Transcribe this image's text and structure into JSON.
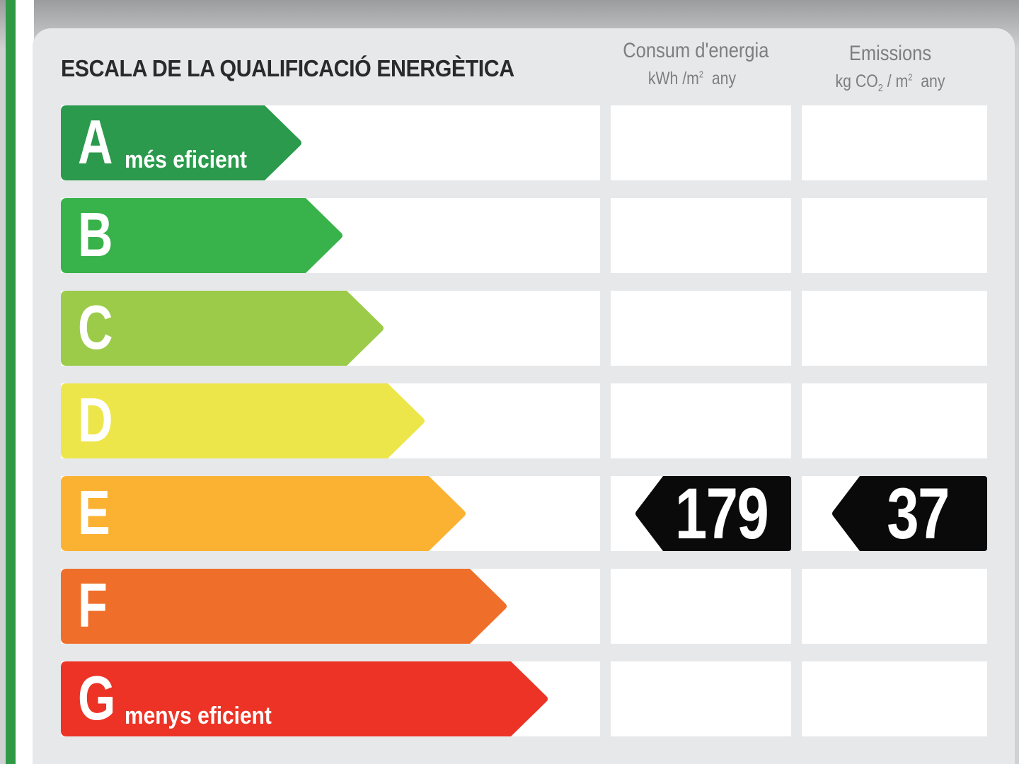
{
  "title": "ESCALA DE LA QUALIFICACIÓ ENERGÈTICA",
  "columns": {
    "consumption": {
      "title": "Consum d'energia",
      "unit_main": "kWh /m",
      "unit_sup": "2",
      "unit_tail": "any"
    },
    "emissions": {
      "title": "Emissions",
      "unit_pre": "kg CO",
      "unit_sub": "2",
      "unit_mid": " / m",
      "unit_sup": "2",
      "unit_tail": "any"
    }
  },
  "classes": [
    {
      "letter": "A",
      "label": "més eficient",
      "color": "#2b9a4c"
    },
    {
      "letter": "B",
      "label": "",
      "color": "#38b24a"
    },
    {
      "letter": "C",
      "label": "",
      "color": "#9bcb48"
    },
    {
      "letter": "D",
      "label": "",
      "color": "#ede64a"
    },
    {
      "letter": "E",
      "label": "",
      "color": "#fbb233"
    },
    {
      "letter": "F",
      "label": "",
      "color": "#ef6f2a"
    },
    {
      "letter": "G",
      "label": "menys eficient",
      "color": "#ec3325"
    }
  ],
  "rating": {
    "class": "E",
    "consumption_value": "179",
    "emissions_value": "37"
  }
}
